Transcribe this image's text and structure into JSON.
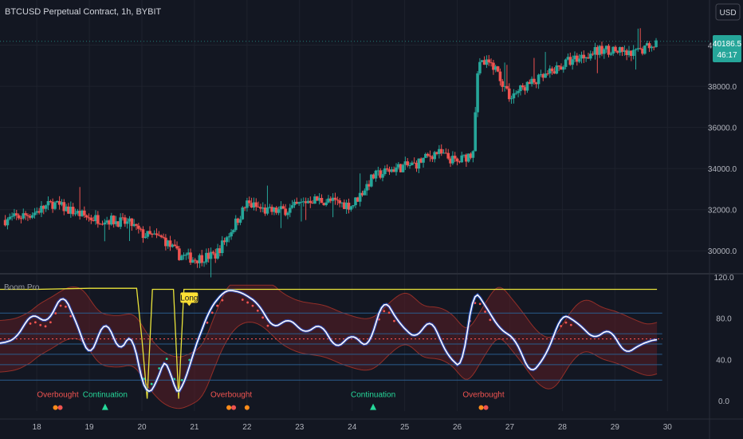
{
  "header": {
    "symbol": "BTCUSD Perpetual Contract, 1h, BYBIT",
    "currency": "USD"
  },
  "price_tag": {
    "price": "40186.5",
    "countdown": "46:17"
  },
  "indicator_title": "Boom Pro",
  "colors": {
    "bg": "#131722",
    "grid": "#1e222d",
    "up": "#26a69a",
    "down": "#ef5350",
    "accent": "#26a69a",
    "osc_line": "#ffffff",
    "osc_glow": "#2962ff",
    "yellow": "#e9e33a",
    "band_fill": "#5b1e24",
    "band_line": "#c0392b",
    "level_line": "#2a5d8c",
    "mid_dotted": "#ef5350",
    "overbought": "#ef5350",
    "continuation": "#26d89a",
    "dot_orange": "#ff8c1a",
    "dot_red": "#ef5350",
    "label_bg": "#ffe135"
  },
  "chart_data": [
    {
      "type": "candlestick",
      "title": "BTCUSD Perpetual Contract, 1h, BYBIT",
      "xlabel": "",
      "ylabel": "",
      "x_ticks": [
        "18",
        "19",
        "20",
        "21",
        "22",
        "23",
        "24",
        "25",
        "26",
        "27",
        "28",
        "29",
        "30"
      ],
      "y_ticks": [
        "30000.0",
        "32000.0",
        "34000.0",
        "36000.0",
        "38000.0",
        "40000.0"
      ],
      "ylim": [
        29000,
        42000
      ],
      "last_price": 40186.5,
      "series": [
        {
          "name": "",
          "x": [
            17.4,
            17.9,
            18.3,
            18.6,
            19.0,
            19.4,
            19.8,
            20.0,
            20.4,
            20.7,
            21.0,
            21.4,
            21.7,
            22.0,
            22.4,
            22.8,
            23.2,
            23.6,
            24.0,
            24.4,
            24.8,
            25.2,
            25.6,
            26.0,
            26.3,
            26.4,
            26.7,
            27.0,
            27.3,
            27.7,
            28.1,
            28.5,
            28.9,
            29.3,
            29.8
          ],
          "close": [
            31500,
            31800,
            32300,
            32000,
            31600,
            31500,
            31300,
            30800,
            30600,
            29800,
            29600,
            29800,
            31000,
            32300,
            31900,
            32000,
            32500,
            32400,
            32200,
            33600,
            34000,
            34200,
            34800,
            34300,
            34800,
            39200,
            39000,
            37500,
            38000,
            38500,
            39200,
            39600,
            39800,
            39500,
            40186.5
          ]
        }
      ],
      "grid": true
    },
    {
      "type": "line",
      "title": "Boom Pro",
      "xlabel": "",
      "ylabel": "",
      "x_ticks": [
        "18",
        "19",
        "20",
        "21",
        "22",
        "23",
        "24",
        "25",
        "26",
        "27",
        "28",
        "29",
        "30"
      ],
      "y_ticks": [
        "0.0",
        "40.0",
        "80.0",
        "120.0"
      ],
      "ylim": [
        -10,
        120
      ],
      "reference_levels": [
        20,
        35,
        45,
        55,
        65,
        85
      ],
      "series": [
        {
          "name": "",
          "x": [
            17.3,
            17.6,
            17.9,
            18.2,
            18.5,
            18.8,
            19.0,
            19.3,
            19.6,
            19.8,
            19.95,
            20.1,
            20.3,
            20.5,
            20.6,
            20.8,
            21.0,
            21.3,
            21.6,
            21.9,
            22.2,
            22.5,
            22.8,
            23.1,
            23.4,
            23.7,
            24.0,
            24.3,
            24.6,
            24.9,
            25.2,
            25.5,
            25.8,
            26.1,
            26.3,
            26.5,
            26.8,
            27.1,
            27.4,
            27.7,
            28.0,
            28.3,
            28.6,
            28.9,
            29.2,
            29.5,
            29.8
          ],
          "values": [
            55,
            60,
            85,
            75,
            105,
            70,
            40,
            80,
            45,
            70,
            30,
            2,
            20,
            50,
            2,
            15,
            50,
            90,
            108,
            105,
            95,
            70,
            80,
            65,
            75,
            50,
            65,
            50,
            100,
            75,
            60,
            80,
            45,
            30,
            110,
            95,
            70,
            60,
            25,
            45,
            85,
            75,
            60,
            70,
            45,
            55,
            60
          ]
        },
        {
          "name": "",
          "x": [
            17.3,
            18.0,
            19.0,
            19.9,
            20.0,
            20.1,
            20.2,
            20.6,
            20.7,
            20.8,
            21.0,
            22.0,
            24.0,
            26.0,
            27.0,
            28.0,
            29.0,
            29.8
          ],
          "values": [
            108,
            108,
            109,
            109,
            60,
            2,
            108,
            108,
            2,
            108,
            108,
            108,
            108,
            108,
            108,
            108,
            108,
            108
          ]
        }
      ],
      "annotations": [
        {
          "text": "Overbought",
          "x": 18.4
        },
        {
          "text": "Continuation",
          "x": 19.3
        },
        {
          "text": "Long",
          "x": 20.9
        },
        {
          "text": "Overbought",
          "x": 21.7
        },
        {
          "text": "Continuation",
          "x": 24.4
        },
        {
          "text": "Overbought",
          "x": 26.5
        }
      ],
      "grid": true
    }
  ]
}
